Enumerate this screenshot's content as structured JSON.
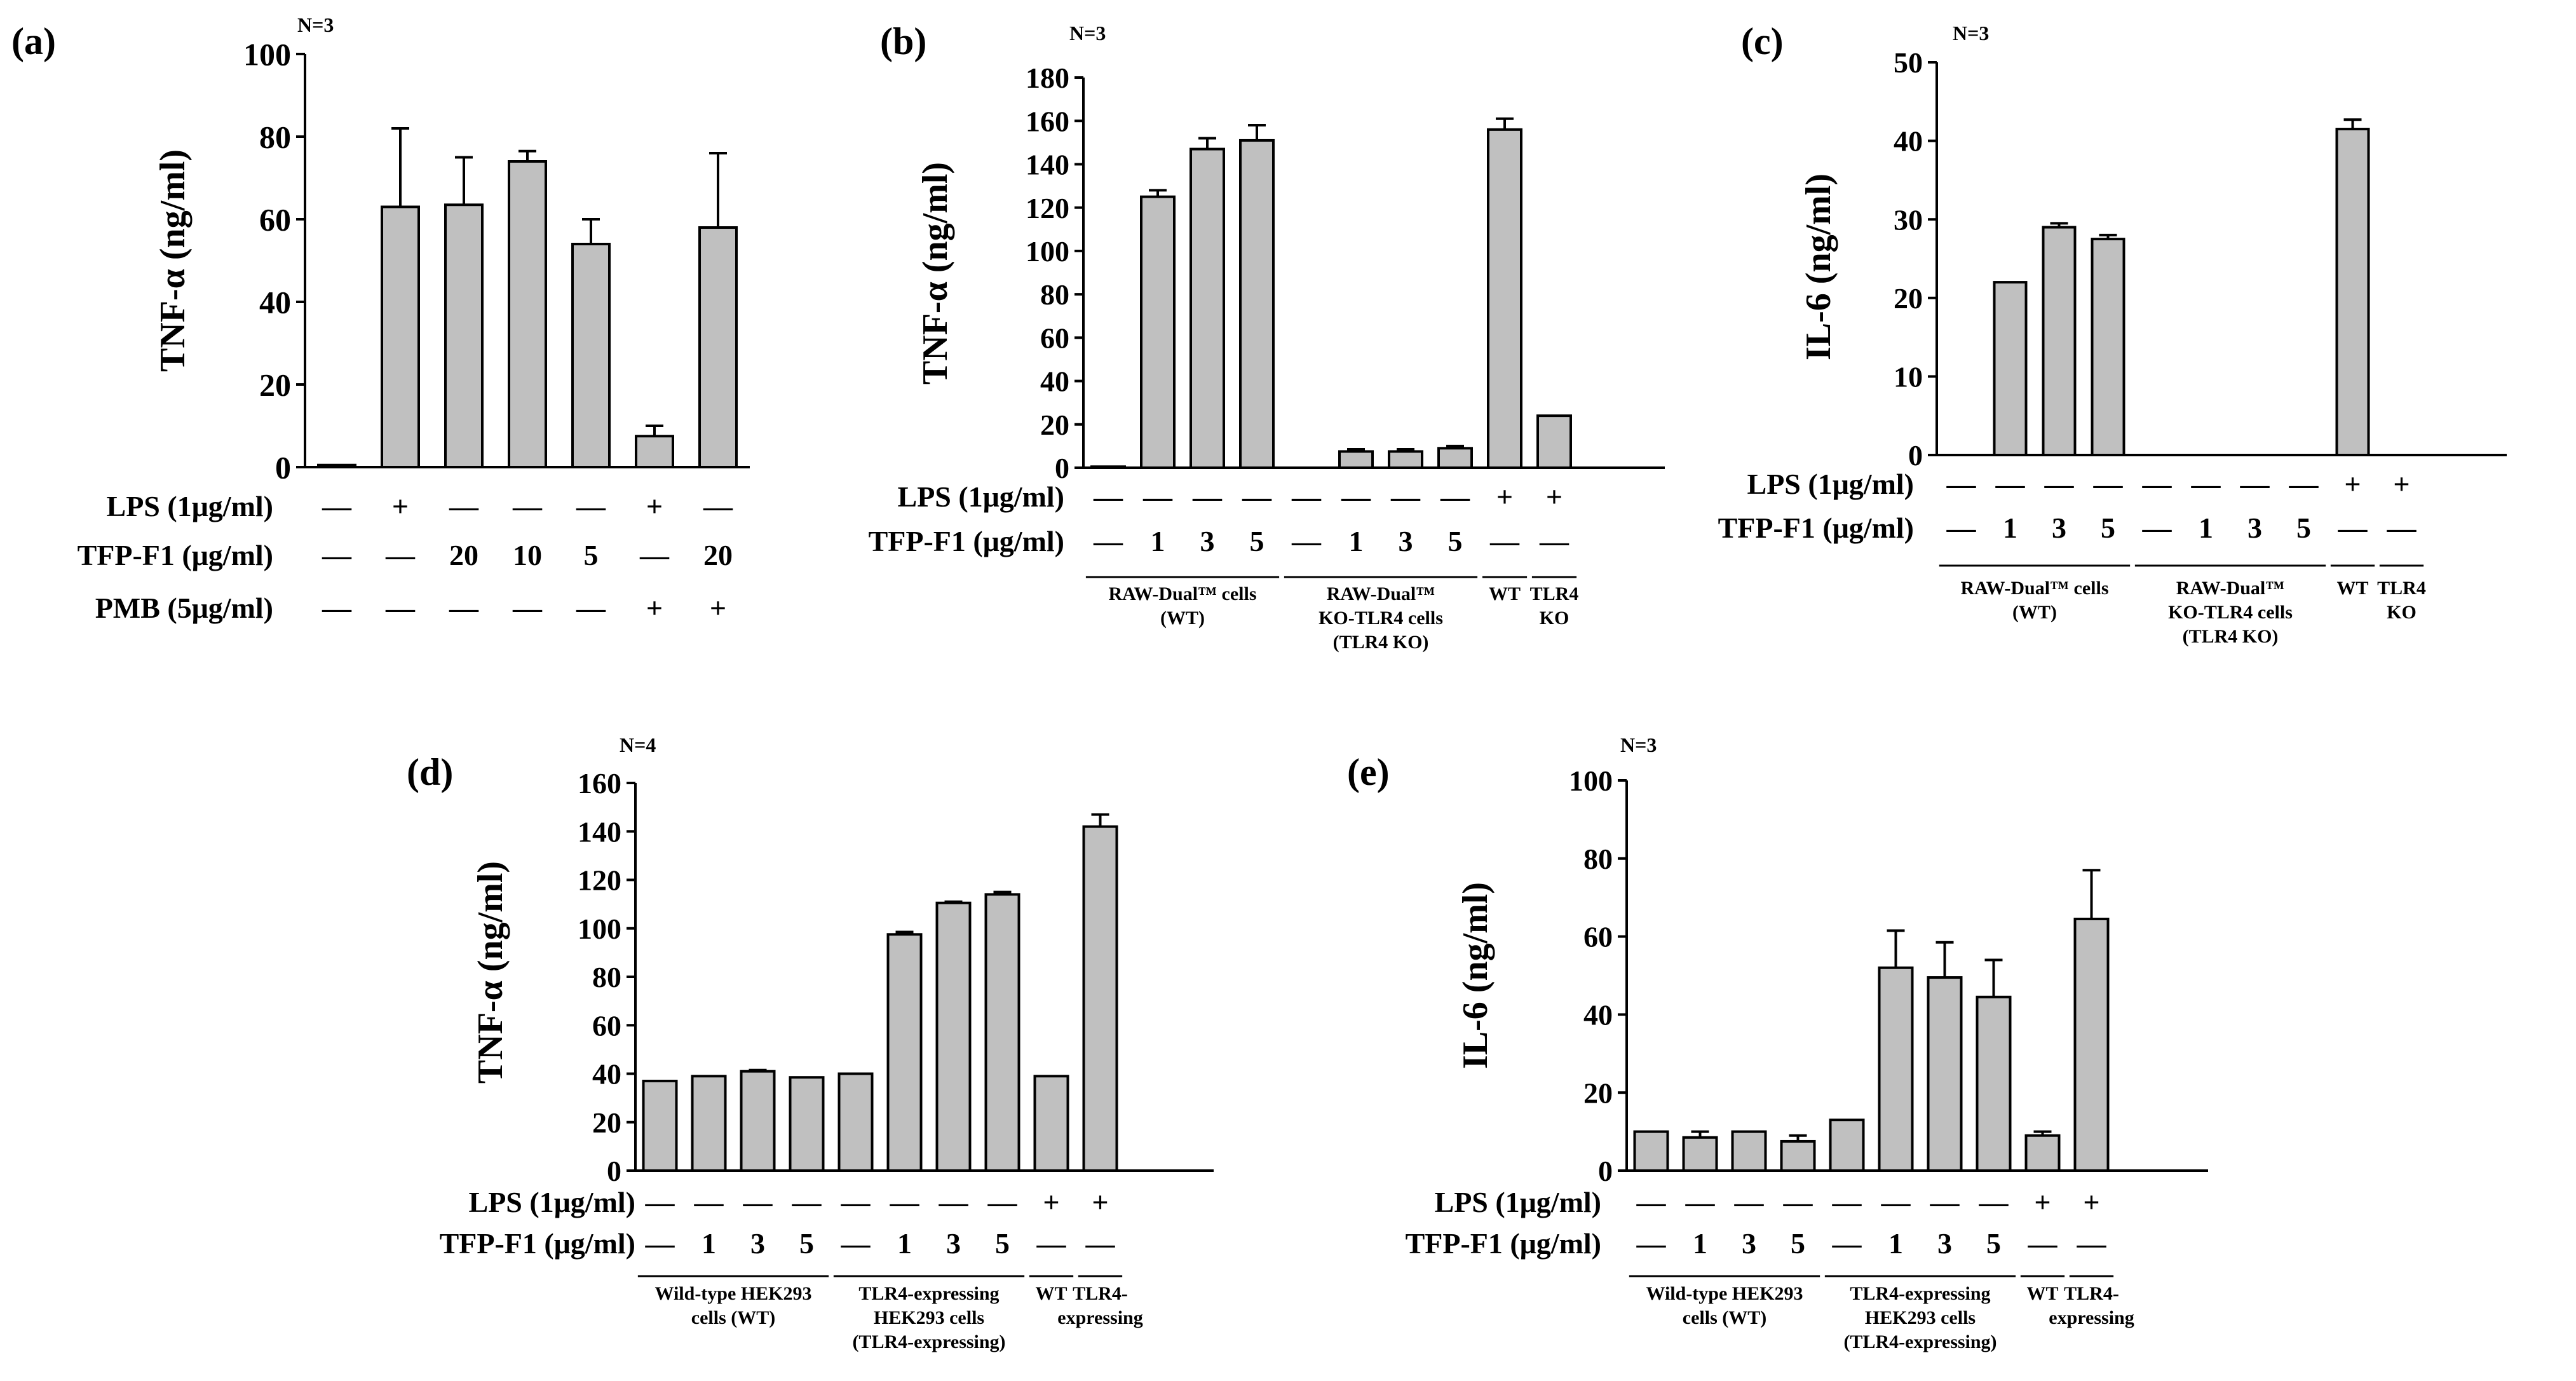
{
  "colors": {
    "bar_fill": "#c0c0c0",
    "bar_stroke": "#000000",
    "axis": "#000000"
  },
  "chart_data": [
    {
      "id": "a",
      "type": "bar",
      "panel_label": "(a)",
      "n_label": "N=3",
      "ylabel": "TNF-α (ng/ml)",
      "ylim": [
        0,
        100
      ],
      "yticks": [
        0,
        20,
        40,
        60,
        80,
        100
      ],
      "values": [
        0.5,
        63,
        63.5,
        74,
        54,
        7.5,
        58
      ],
      "errors": [
        0,
        19,
        11.5,
        2.5,
        6,
        2.5,
        18
      ],
      "rows": [
        {
          "label": "LPS (1μg/ml)",
          "cells": [
            "—",
            "+",
            "—",
            "—",
            "—",
            "+",
            "—"
          ]
        },
        {
          "label": "TFP-F1 (μg/ml)",
          "cells": [
            "—",
            "—",
            "20",
            "10",
            "5",
            "—",
            "20"
          ]
        },
        {
          "label": "PMB (5μg/ml)",
          "cells": [
            "—",
            "—",
            "—",
            "—",
            "—",
            "+",
            "+"
          ]
        }
      ],
      "groups": []
    },
    {
      "id": "b",
      "type": "bar",
      "panel_label": "(b)",
      "n_label": "N=3",
      "ylabel": "TNF-α (ng/ml)",
      "ylim": [
        0,
        180
      ],
      "yticks": [
        0,
        20,
        40,
        60,
        80,
        100,
        120,
        140,
        160,
        180
      ],
      "values": [
        0.5,
        125,
        147,
        151,
        0,
        7.5,
        7.5,
        9,
        156,
        24
      ],
      "errors": [
        0,
        3,
        5,
        7,
        0,
        1,
        1,
        1,
        5,
        0
      ],
      "rows": [
        {
          "label": "LPS (1μg/ml)",
          "cells": [
            "—",
            "—",
            "—",
            "—",
            "—",
            "—",
            "—",
            "—",
            "+",
            "+"
          ]
        },
        {
          "label": "TFP-F1 (μg/ml)",
          "cells": [
            "—",
            "1",
            "3",
            "5",
            "—",
            "1",
            "3",
            "5",
            "—",
            "—"
          ]
        }
      ],
      "groups": [
        {
          "start": 0,
          "end": 3,
          "lines": [
            "RAW-Dual™ cells",
            "(WT)"
          ]
        },
        {
          "start": 4,
          "end": 7,
          "lines": [
            "RAW-Dual™",
            "KO-TLR4 cells",
            "(TLR4 KO)"
          ]
        },
        {
          "start": 8,
          "end": 8,
          "lines": [
            "WT"
          ]
        },
        {
          "start": 9,
          "end": 9,
          "lines": [
            "TLR4",
            "KO"
          ]
        }
      ]
    },
    {
      "id": "c",
      "type": "bar",
      "panel_label": "(c)",
      "n_label": "N=3",
      "ylabel": "IL-6 (ng/ml)",
      "ylim": [
        0,
        50
      ],
      "yticks": [
        0,
        10,
        20,
        30,
        40,
        50
      ],
      "values": [
        0,
        22,
        29,
        27.5,
        0,
        0,
        0,
        0,
        41.5,
        0
      ],
      "errors": [
        0,
        0,
        0.5,
        0.5,
        0,
        0,
        0,
        0,
        1.2,
        0
      ],
      "rows": [
        {
          "label": "LPS (1μg/ml)",
          "cells": [
            "—",
            "—",
            "—",
            "—",
            "—",
            "—",
            "—",
            "—",
            "+",
            "+"
          ]
        },
        {
          "label": "TFP-F1 (μg/ml)",
          "cells": [
            "—",
            "1",
            "3",
            "5",
            "—",
            "1",
            "3",
            "5",
            "—",
            "—"
          ]
        }
      ],
      "groups": [
        {
          "start": 0,
          "end": 3,
          "lines": [
            "RAW-Dual™ cells",
            "(WT)"
          ]
        },
        {
          "start": 4,
          "end": 7,
          "lines": [
            "RAW-Dual™",
            "KO-TLR4 cells",
            "(TLR4 KO)"
          ]
        },
        {
          "start": 8,
          "end": 8,
          "lines": [
            "WT"
          ]
        },
        {
          "start": 9,
          "end": 9,
          "lines": [
            "TLR4",
            "KO"
          ]
        }
      ]
    },
    {
      "id": "d",
      "type": "bar",
      "panel_label": "(d)",
      "n_label": "N=4",
      "ylabel": "TNF-α (ng/ml)",
      "ylim": [
        0,
        160
      ],
      "yticks": [
        0,
        20,
        40,
        60,
        80,
        100,
        120,
        140,
        160
      ],
      "values": [
        37,
        39,
        41,
        38.5,
        40,
        97.5,
        110.5,
        114,
        39,
        142
      ],
      "errors": [
        0,
        0,
        0.5,
        0,
        0,
        1,
        0.5,
        1,
        0,
        5
      ],
      "rows": [
        {
          "label": "LPS (1μg/ml)",
          "cells": [
            "—",
            "—",
            "—",
            "—",
            "—",
            "—",
            "—",
            "—",
            "+",
            "+"
          ]
        },
        {
          "label": "TFP-F1 (μg/ml)",
          "cells": [
            "—",
            "1",
            "3",
            "5",
            "—",
            "1",
            "3",
            "5",
            "—",
            "—"
          ]
        }
      ],
      "groups": [
        {
          "start": 0,
          "end": 3,
          "lines": [
            "Wild-type  HEK293",
            "cells (WT)"
          ]
        },
        {
          "start": 4,
          "end": 7,
          "lines": [
            "TLR4-expressing",
            "HEK293 cells",
            "(TLR4-expressing)"
          ]
        },
        {
          "start": 8,
          "end": 8,
          "lines": [
            "WT"
          ]
        },
        {
          "start": 9,
          "end": 9,
          "lines": [
            "TLR4-",
            "expressing"
          ]
        }
      ]
    },
    {
      "id": "e",
      "type": "bar",
      "panel_label": "(e)",
      "n_label": "N=3",
      "ylabel": "IL-6 (ng/ml)",
      "ylim": [
        0,
        100
      ],
      "yticks": [
        0,
        20,
        40,
        60,
        80,
        100
      ],
      "values": [
        10,
        8.5,
        10,
        7.5,
        13,
        52,
        49.5,
        44.5,
        9,
        64.5
      ],
      "errors": [
        0,
        1.5,
        0,
        1.5,
        0,
        9.5,
        9,
        9.5,
        1,
        12.5
      ],
      "rows": [
        {
          "label": "LPS (1μg/ml)",
          "cells": [
            "—",
            "—",
            "—",
            "—",
            "—",
            "—",
            "—",
            "—",
            "+",
            "+"
          ]
        },
        {
          "label": "TFP-F1 (μg/ml)",
          "cells": [
            "—",
            "1",
            "3",
            "5",
            "—",
            "1",
            "3",
            "5",
            "—",
            "—"
          ]
        }
      ],
      "groups": [
        {
          "start": 0,
          "end": 3,
          "lines": [
            "Wild-type  HEK293",
            "cells (WT)"
          ]
        },
        {
          "start": 4,
          "end": 7,
          "lines": [
            "TLR4-expressing",
            "HEK293 cells",
            "(TLR4-expressing)"
          ]
        },
        {
          "start": 8,
          "end": 8,
          "lines": [
            "WT"
          ]
        },
        {
          "start": 9,
          "end": 9,
          "lines": [
            "TLR4-",
            "expressing"
          ]
        }
      ]
    }
  ]
}
